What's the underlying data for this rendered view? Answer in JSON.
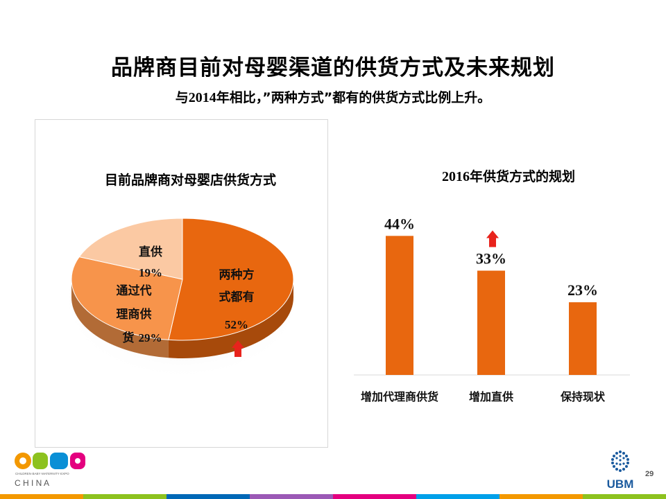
{
  "slide": {
    "title": "品牌商目前对母婴渠道的供货方式及未来规划",
    "subtitle_pre": "与",
    "subtitle_year": "2014",
    "subtitle_post": "年相比，”两种方式”都有的供货方式比例上升。",
    "page_number": "29"
  },
  "chart_data": [
    {
      "type": "pie",
      "title": "目前品牌商对母婴店供货方式",
      "slices": [
        {
          "label_lines": [
            "两种方",
            "式都有"
          ],
          "value": 52,
          "value_label": "52%",
          "color": "#e8670f",
          "trend_up": true
        },
        {
          "label_lines": [
            "通过代",
            "理商供",
            "货"
          ],
          "value": 29,
          "value_label": "29%",
          "color": "#f7944b",
          "trend_up": false
        },
        {
          "label_lines": [
            "直供"
          ],
          "value": 19,
          "value_label": "19%",
          "color": "#fbc9a3",
          "trend_up": false
        }
      ]
    },
    {
      "type": "bar",
      "title_year": "2016",
      "title_text": "年供货方式的规划",
      "categories": [
        "增加代理商供货",
        "增加直供",
        "保持现状"
      ],
      "values": [
        44,
        33,
        23
      ],
      "value_labels": [
        "44%",
        "33%",
        "23%"
      ],
      "trend_up": [
        false,
        true,
        false
      ],
      "ylim": [
        0,
        50
      ],
      "bar_color": "#e8670f"
    }
  ],
  "colors": {
    "accent": "#e8670f",
    "arrow": "#e8231c"
  },
  "logos": {
    "cbme_small": "CHILDREN·BABY·MATERNITY·EXPO",
    "cbme_china": "C H I N A",
    "ubm": "UBM"
  },
  "footer_colors": [
    "#f39800",
    "#8dc21f",
    "#0068b7",
    "#9b59b6",
    "#e4007f",
    "#00a0e9",
    "#f39800",
    "#8dc21f"
  ]
}
